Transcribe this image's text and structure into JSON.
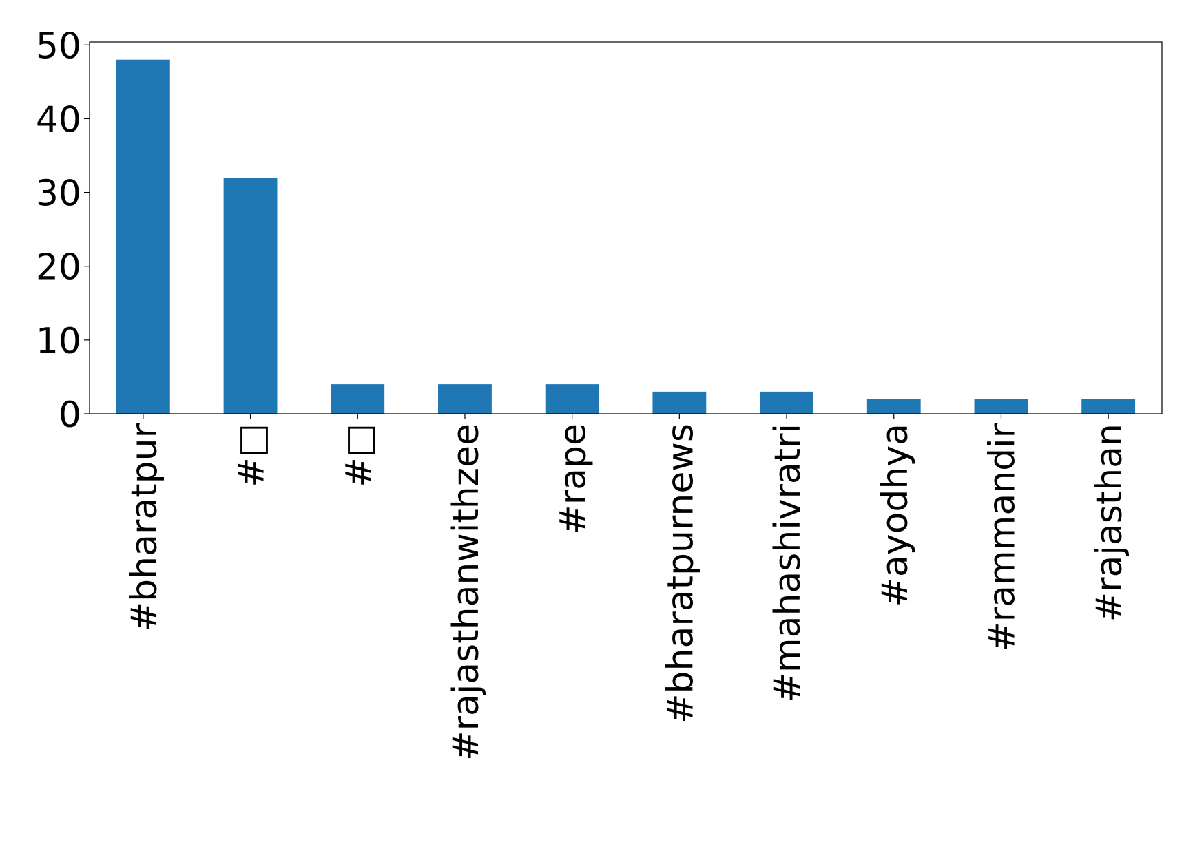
{
  "chart_data": {
    "type": "bar",
    "categories": [
      "#bharatpur",
      "#□",
      "#□",
      "#rajasthanwithzee",
      "#rape",
      "#bharatpurnews",
      "#mahashivratri",
      "#ayodhya",
      "#rammandir",
      "#rajasthan"
    ],
    "values": [
      48,
      32,
      4,
      4,
      4,
      3,
      3,
      2,
      2,
      2
    ],
    "color": "#1f77b4",
    "ylim": [
      0,
      50.4
    ],
    "yticks": [
      0,
      10,
      20,
      30,
      40,
      50
    ],
    "grid": false
  }
}
